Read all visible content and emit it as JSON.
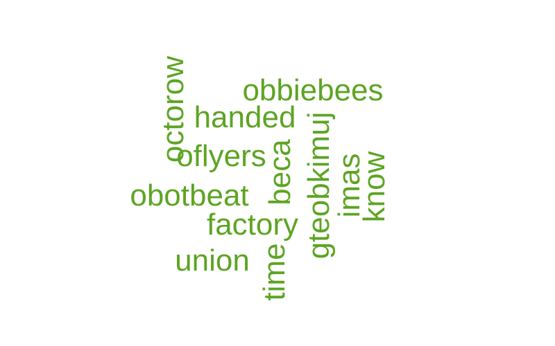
{
  "word_color": "#5DA423",
  "words": [
    {
      "text": "obbiebees",
      "orientation": "horizontal"
    },
    {
      "text": "handed",
      "orientation": "horizontal"
    },
    {
      "text": "oflyers",
      "orientation": "horizontal"
    },
    {
      "text": "obotbeat",
      "orientation": "horizontal"
    },
    {
      "text": "factory",
      "orientation": "horizontal"
    },
    {
      "text": "union",
      "orientation": "horizontal"
    },
    {
      "text": "octorow",
      "orientation": "vertical"
    },
    {
      "text": "beca",
      "orientation": "vertical"
    },
    {
      "text": "time",
      "orientation": "vertical"
    },
    {
      "text": "gteobkimuj",
      "orientation": "vertical"
    },
    {
      "text": "imas",
      "orientation": "vertical"
    },
    {
      "text": "know",
      "orientation": "vertical"
    }
  ]
}
